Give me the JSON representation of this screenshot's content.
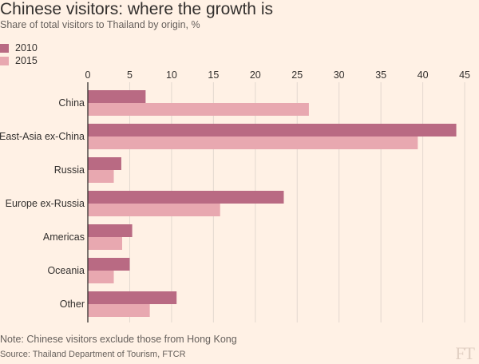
{
  "chart_data": {
    "type": "bar",
    "orientation": "horizontal",
    "title": "Chinese visitors: where the growth is",
    "subtitle": "Share of total visitors to Thailand by origin, %",
    "categories": [
      "China",
      "East-Asia ex-China",
      "Russia",
      "Europe ex-Russia",
      "Americas",
      "Oceania",
      "Other"
    ],
    "series": [
      {
        "name": "2010",
        "color": "#b96a83",
        "values": [
          6.9,
          44,
          4,
          23.4,
          5.3,
          5,
          10.6
        ]
      },
      {
        "name": "2015",
        "color": "#e8a8b0",
        "values": [
          26.4,
          39.4,
          3.1,
          15.8,
          4.1,
          3.1,
          7.4
        ]
      }
    ],
    "xlim": [
      0,
      45
    ],
    "xticks": [
      0,
      5,
      10,
      15,
      20,
      25,
      30,
      35,
      40,
      45
    ],
    "grid": true,
    "legend_position": "top-left",
    "xlabel": "",
    "ylabel": ""
  },
  "footer": {
    "note": "Note: Chinese visitors exclude those from Hong Kong",
    "source": "Source: Thailand Department of Tourism, FTCR",
    "logo": "FT"
  },
  "colors": {
    "background": "#fff1e5",
    "grid": "#e3d8cf",
    "axis": "#33302e"
  }
}
